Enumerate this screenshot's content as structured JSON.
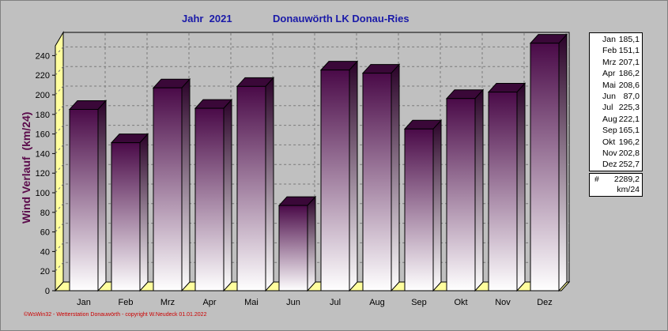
{
  "header": {
    "year_label": "Jahr  2021",
    "station_label": "Donauwörth LK Donau-Ries"
  },
  "footer": "©WsWin32 - Wetterstation Donauwörth - copyright W.Neudeck 01.01.2022",
  "colors": {
    "bar_top": "#4a0a48",
    "bar_bottom": "#ffffff",
    "wall": "#fffe9e",
    "background": "#c0c0c0",
    "grid": "#7a7a7a",
    "title": "#1a1aa8",
    "ylabel": "#5a0a4a"
  },
  "legend": [
    {
      "month": "Jan",
      "value": "185,1"
    },
    {
      "month": "Feb",
      "value": "151,1"
    },
    {
      "month": "Mrz",
      "value": "207,1"
    },
    {
      "month": "Apr",
      "value": "186,2"
    },
    {
      "month": "Mai",
      "value": "208,6"
    },
    {
      "month": "Jun",
      "value": "87,0"
    },
    {
      "month": "Jul",
      "value": "225,3"
    },
    {
      "month": "Aug",
      "value": "222,1"
    },
    {
      "month": "Sep",
      "value": "165,1"
    },
    {
      "month": "Okt",
      "value": "196,2"
    },
    {
      "month": "Nov",
      "value": "202,8"
    },
    {
      "month": "Dez",
      "value": "252,7"
    }
  ],
  "total": {
    "symbol": "#",
    "value": "2289,2",
    "unit": "km/24"
  },
  "chart_data": {
    "type": "bar",
    "title": "",
    "ylabel": "Wind Verlauf  (km/24)",
    "xlabel": "",
    "categories": [
      "Jan",
      "Feb",
      "Mrz",
      "Apr",
      "Mai",
      "Jun",
      "Jul",
      "Aug",
      "Sep",
      "Okt",
      "Nov",
      "Dez"
    ],
    "values": [
      185.1,
      151.1,
      207.1,
      186.2,
      208.6,
      87.0,
      225.3,
      222.1,
      165.1,
      196.2,
      202.8,
      252.7
    ],
    "ylim": [
      0,
      250
    ],
    "yticks": [
      0,
      20,
      40,
      60,
      80,
      100,
      120,
      140,
      160,
      180,
      200,
      220,
      240
    ],
    "grid": true,
    "legend_position": "right"
  }
}
